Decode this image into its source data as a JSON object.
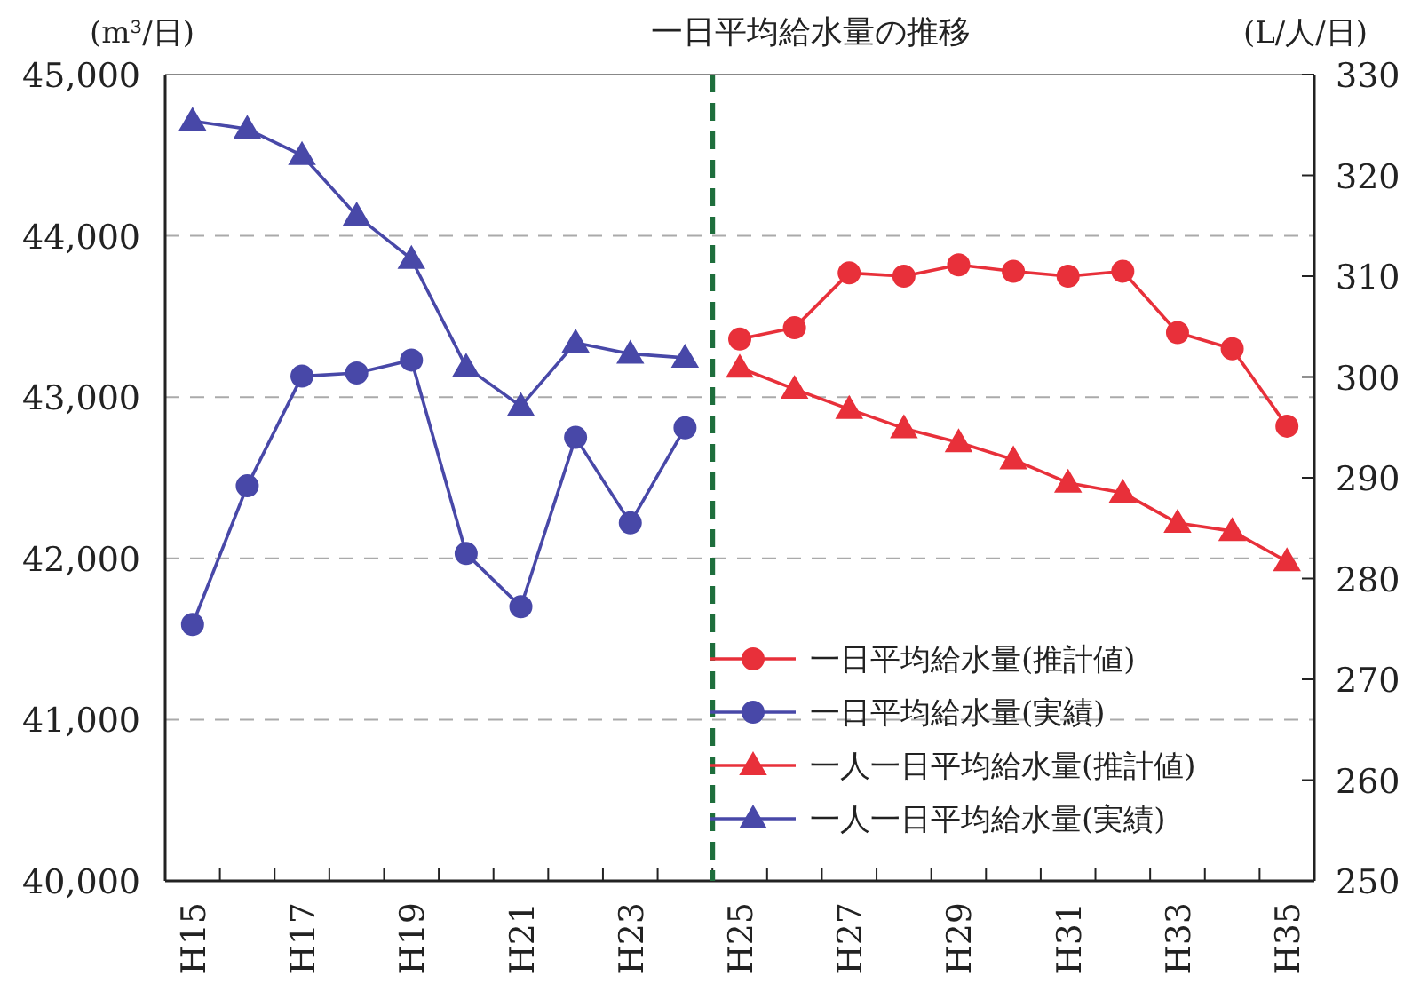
{
  "chart_data": {
    "type": "line",
    "title": "一日平均給水量の推移",
    "ylabel": "(m³/日)",
    "y2label": "(L/人/日)",
    "categories": [
      "H15",
      null,
      "H17",
      null,
      "H19",
      null,
      "H21",
      null,
      "H23",
      null,
      "H25",
      null,
      "H27",
      null,
      "H29",
      null,
      "H31",
      null,
      "H33",
      null,
      "H35"
    ],
    "ylim": [
      40000,
      45000
    ],
    "yticks": [
      {
        "value": 40000,
        "label": "40,000"
      },
      {
        "value": 41000,
        "label": "41,000"
      },
      {
        "value": 42000,
        "label": "42,000"
      },
      {
        "value": 43000,
        "label": "43,000"
      },
      {
        "value": 44000,
        "label": "44,000"
      },
      {
        "value": 45000,
        "label": "45,000"
      }
    ],
    "y2lim": [
      250,
      330
    ],
    "y2ticks": [
      250,
      260,
      270,
      280,
      290,
      300,
      310,
      320,
      330
    ],
    "grid": "y",
    "legend": "bottom right",
    "series": [
      {
        "name": "一日平均給水量(推計値)",
        "color": "#e8303a",
        "marker": "circle",
        "values": [
          null,
          null,
          null,
          null,
          null,
          null,
          null,
          null,
          null,
          null,
          43360,
          43430,
          43770,
          43750,
          43820,
          43780,
          43750,
          43780,
          43400,
          43300,
          42820
        ]
      },
      {
        "name": "一日平均給水量(実績)",
        "color": "#4848a8",
        "marker": "circle",
        "values": [
          41590,
          42450,
          43130,
          43150,
          43230,
          42030,
          41700,
          42750,
          42220,
          42810,
          null,
          null,
          null,
          null,
          null,
          null,
          null,
          null,
          null,
          null,
          null
        ]
      },
      {
        "name": "一人一日平均給水量(推計値)",
        "color": "#e8303a",
        "marker": "triangle",
        "axis": "y2",
        "values": [
          null,
          null,
          null,
          null,
          null,
          null,
          null,
          null,
          null,
          null,
          300.9,
          298.8,
          296.8,
          294.9,
          293.5,
          291.8,
          289.5,
          288.5,
          285.5,
          284.7,
          281.7
        ]
      },
      {
        "name": "一人一日平均給水量(実績)",
        "color": "#4848a8",
        "marker": "triangle",
        "axis": "y2",
        "values": [
          325.4,
          324.6,
          322.0,
          316.0,
          311.7,
          301.0,
          297.1,
          303.4,
          302.3,
          301.9,
          null,
          null,
          null,
          null,
          null,
          null,
          null,
          null,
          null,
          null,
          null
        ]
      }
    ]
  }
}
